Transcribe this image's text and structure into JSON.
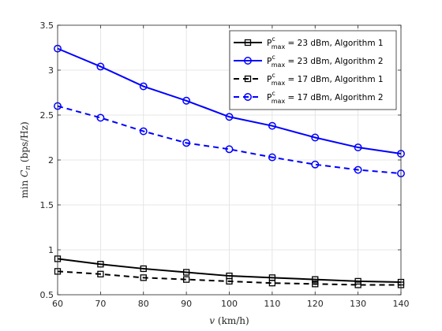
{
  "chart_data": {
    "type": "line",
    "xlabel": "v (km/h)",
    "ylabel": "min C_n  (bps/Hz)",
    "xlim": [
      60,
      140
    ],
    "ylim": [
      0.5,
      3.5
    ],
    "xticks": [
      "60",
      "70",
      "80",
      "90",
      "100",
      "110",
      "120",
      "130",
      "140"
    ],
    "yticks": [
      "0.5",
      "1",
      "1.5",
      "2",
      "2.5",
      "3",
      "3.5"
    ],
    "grid": true,
    "legend_position": "top-right",
    "x": [
      60,
      70,
      80,
      90,
      100,
      110,
      120,
      130,
      140
    ],
    "series": [
      {
        "name": "P_max^c = 23 dBm, Algorithm 1",
        "legend_main": "P",
        "legend_sup": "c",
        "legend_sub": "max",
        "legend_rest": " = 23 dBm, Algorithm 1",
        "color": "#000000",
        "line_style": "solid",
        "marker": "square",
        "values": [
          0.9,
          0.84,
          0.79,
          0.75,
          0.71,
          0.69,
          0.67,
          0.65,
          0.64
        ]
      },
      {
        "name": "P_max^c = 23 dBm, Algorithm 2",
        "legend_main": "P",
        "legend_sup": "c",
        "legend_sub": "max",
        "legend_rest": " = 23 dBm, Algorithm 2",
        "color": "#0000ff",
        "line_style": "solid",
        "marker": "circle",
        "values": [
          3.24,
          3.04,
          2.82,
          2.66,
          2.48,
          2.38,
          2.25,
          2.14,
          2.07
        ]
      },
      {
        "name": "P_max^c = 17 dBm, Algorithm 1",
        "legend_main": "P",
        "legend_sup": "c",
        "legend_sub": "max",
        "legend_rest": " = 17 dBm, Algorithm 1",
        "color": "#000000",
        "line_style": "dashed",
        "marker": "square",
        "values": [
          0.76,
          0.73,
          0.69,
          0.67,
          0.65,
          0.63,
          0.62,
          0.61,
          0.61
        ]
      },
      {
        "name": "P_max^c = 17 dBm, Algorithm 2",
        "legend_main": "P",
        "legend_sup": "c",
        "legend_sub": "max",
        "legend_rest": " = 17 dBm, Algorithm 2",
        "color": "#0000ff",
        "line_style": "dashed",
        "marker": "circle",
        "values": [
          2.6,
          2.47,
          2.32,
          2.19,
          2.12,
          2.03,
          1.95,
          1.89,
          1.85
        ]
      }
    ]
  }
}
